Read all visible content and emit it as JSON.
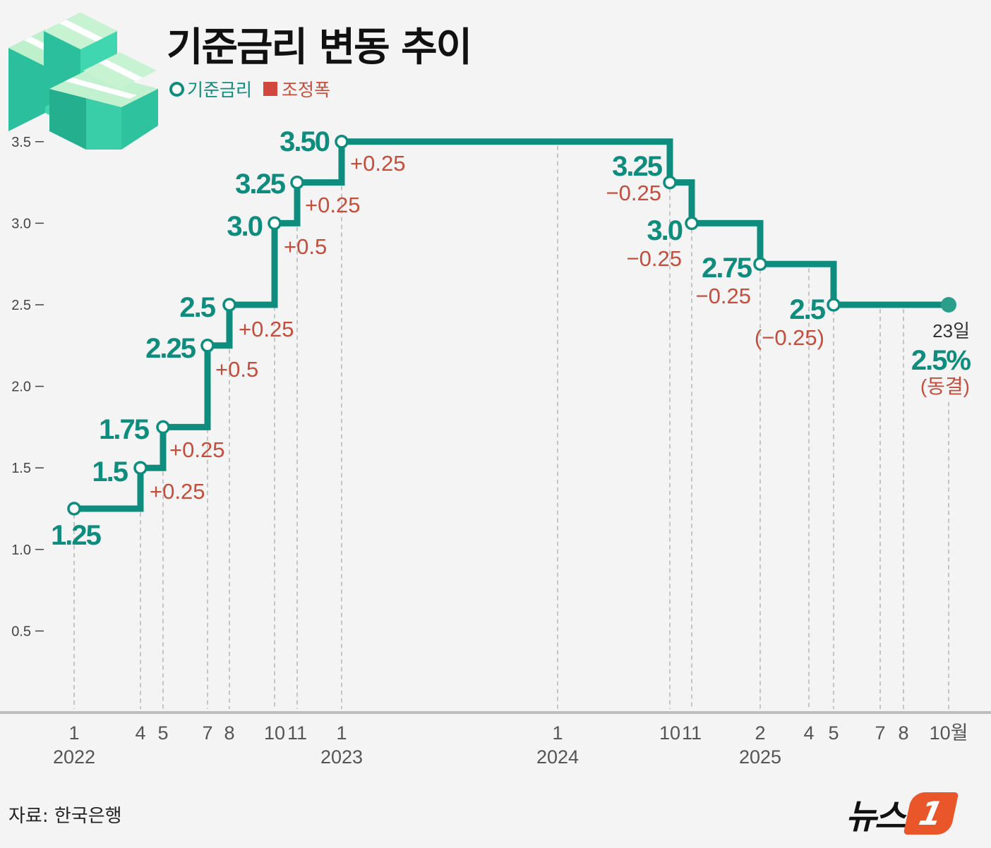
{
  "title": "기준금리 변동 추이",
  "legend": {
    "rate_label": "기준금리",
    "change_label": "조정폭"
  },
  "source": "자료: 한국은행",
  "logo": {
    "text": "뉴스",
    "badge": "1"
  },
  "colors": {
    "line": "#0e8c7e",
    "change": "#c44e3b",
    "legend_square": "#d1473d",
    "axis": "#bdbdbd",
    "grid": "#b5b5b5"
  },
  "chart_data": {
    "type": "line",
    "step": true,
    "title": "기준금리 변동 추이",
    "ylim": [
      0,
      3.5
    ],
    "y_ticks": [
      "0.5",
      "1.0",
      "1.5",
      "2.0",
      "2.5",
      "3.0",
      "3.5"
    ],
    "y_tick_values": [
      0.5,
      1.0,
      1.5,
      2.0,
      2.5,
      3.0,
      3.5
    ],
    "x_axis_labels": [
      {
        "t": 0,
        "label": "1",
        "year": "2022"
      },
      {
        "t": 3,
        "label": "4"
      },
      {
        "t": 4,
        "label": "5"
      },
      {
        "t": 6,
        "label": "7"
      },
      {
        "t": 7,
        "label": "8"
      },
      {
        "t": 9,
        "label": "10"
      },
      {
        "t": 10,
        "label": "11"
      },
      {
        "t": 12,
        "label": "1",
        "year": "2023"
      },
      {
        "t": 24,
        "label": "1",
        "year": "2024"
      },
      {
        "t": 33,
        "label": "10"
      },
      {
        "t": 34,
        "label": "11"
      },
      {
        "t": 37,
        "label": "2",
        "year": "2025"
      },
      {
        "t": 39,
        "label": "4"
      },
      {
        "t": 40,
        "label": "5"
      },
      {
        "t": 42,
        "label": "7"
      },
      {
        "t": 43,
        "label": "8"
      },
      {
        "t": 45,
        "label": "10월"
      }
    ],
    "points": [
      {
        "t": 0,
        "rate": 1.25,
        "label": "1.25",
        "change": ""
      },
      {
        "t": 3,
        "rate": 1.5,
        "label": "1.5",
        "change": "+0.25"
      },
      {
        "t": 4,
        "rate": 1.75,
        "label": "1.75",
        "change": "+0.25"
      },
      {
        "t": 6,
        "rate": 2.25,
        "label": "2.25",
        "change": "+0.5"
      },
      {
        "t": 7,
        "rate": 2.5,
        "label": "2.5",
        "change": "+0.25"
      },
      {
        "t": 9,
        "rate": 3.0,
        "label": "3.0",
        "change": "+0.5"
      },
      {
        "t": 10,
        "rate": 3.25,
        "label": "3.25",
        "change": "+0.25"
      },
      {
        "t": 12,
        "rate": 3.5,
        "label": "3.50",
        "change": "+0.25"
      },
      {
        "t": 33,
        "rate": 3.25,
        "label": "3.25",
        "change": "−0.25"
      },
      {
        "t": 34,
        "rate": 3.0,
        "label": "3.0",
        "change": "−0.25"
      },
      {
        "t": 37,
        "rate": 2.75,
        "label": "2.75",
        "change": "−0.25"
      },
      {
        "t": 40,
        "rate": 2.5,
        "label": "2.5",
        "change": "(−0.25)"
      }
    ],
    "current": {
      "t": 45,
      "rate": 2.5,
      "day": "23일",
      "value": "2.5%",
      "status": "(동결)"
    }
  }
}
